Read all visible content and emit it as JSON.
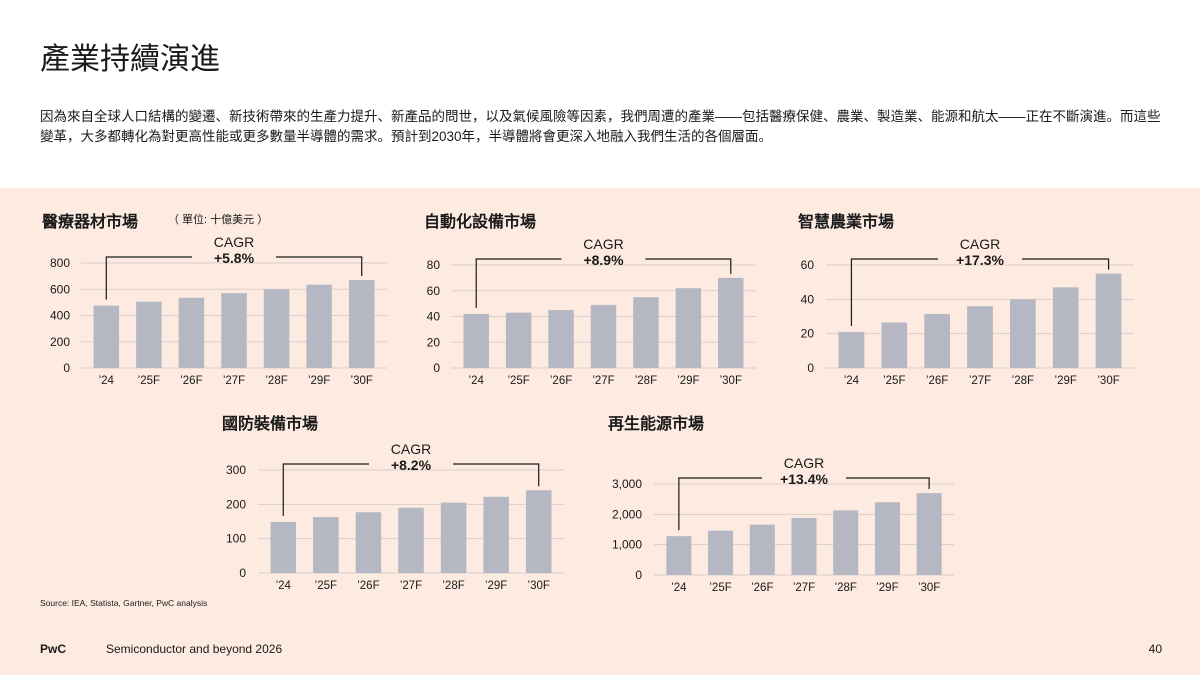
{
  "page": {
    "title": "產業持續演進",
    "intro": "因為來自全球人口結構的變遷、新技術帶來的生產力提升、新產品的問世，以及氣候風險等因素，我們周遭的產業——包括醫療保健、農業、製造業、能源和航太——正在不斷演進。而這些變革，大多都轉化為對更高性能或更多數量半導體的需求。預計到2030年，半導體將會更深入地融入我們生活的各個層面。",
    "unit_note": "（ 單位: 十億美元 ）",
    "source": "Source: IEA, Statista, Gartner, PwC analysis",
    "footer_brand": "PwC",
    "footer_text": "Semiconductor and beyond 2026",
    "page_number": "40"
  },
  "colors": {
    "bar": "#b5b8c2",
    "panel": "#fdebe1",
    "grid": "#d9cfc9"
  },
  "chart_data": [
    {
      "id": "medical",
      "type": "bar",
      "title": "醫療器材市場",
      "categories": [
        "’24",
        "’25F",
        "’26F",
        "’27F",
        "’28F",
        "’29F",
        "’30F"
      ],
      "values": [
        475,
        505,
        535,
        570,
        600,
        635,
        670
      ],
      "ylim": [
        0,
        800
      ],
      "yticks": [
        "0",
        "200",
        "400",
        "600",
        "800"
      ],
      "ytick_values": [
        0,
        200,
        400,
        600,
        800
      ],
      "cagr_label": "CAGR",
      "cagr_value": "+5.8%"
    },
    {
      "id": "automation",
      "type": "bar",
      "title": "自動化設備市場",
      "categories": [
        "’24",
        "’25F",
        "’26F",
        "’27F",
        "’28F",
        "’29F",
        "’30F"
      ],
      "values": [
        42,
        43,
        45,
        49,
        55,
        62,
        70
      ],
      "ylim": [
        0,
        80
      ],
      "yticks": [
        "0",
        "20",
        "40",
        "60",
        "80"
      ],
      "ytick_values": [
        0,
        20,
        40,
        60,
        80
      ],
      "cagr_label": "CAGR",
      "cagr_value": "+8.9%"
    },
    {
      "id": "agri",
      "type": "bar",
      "title": "智慧農業市場",
      "categories": [
        "’24",
        "’25F",
        "’26F",
        "’27F",
        "’28F",
        "’29F",
        "’30F"
      ],
      "values": [
        21,
        26.5,
        31.5,
        36,
        40,
        47,
        55
      ],
      "ylim": [
        0,
        60
      ],
      "yticks": [
        "0",
        "20",
        "40",
        "60"
      ],
      "ytick_values": [
        0,
        20,
        40,
        60
      ],
      "cagr_label": "CAGR",
      "cagr_value": "+17.3%"
    },
    {
      "id": "defense",
      "type": "bar",
      "title": "國防裝備市場",
      "categories": [
        "’24",
        "’25F",
        "’26F",
        "’27F",
        "’28F",
        "’29F",
        "’30F"
      ],
      "values": [
        149,
        163,
        177,
        190,
        205,
        222,
        241
      ],
      "ylim": [
        0,
        300
      ],
      "yticks": [
        "0",
        "100",
        "200",
        "300"
      ],
      "ytick_values": [
        0,
        100,
        200,
        300
      ],
      "cagr_label": "CAGR",
      "cagr_value": "+8.2%"
    },
    {
      "id": "renewable",
      "type": "bar",
      "title": "再生能源市場",
      "categories": [
        "’24",
        "’25F",
        "’26F",
        "’27F",
        "’28F",
        "’29F",
        "’30F"
      ],
      "values": [
        1280,
        1460,
        1660,
        1880,
        2130,
        2400,
        2700
      ],
      "ylim": [
        0,
        3000
      ],
      "yticks": [
        "0",
        "1,000",
        "2,000",
        "3,000"
      ],
      "ytick_values": [
        0,
        1000,
        2000,
        3000
      ],
      "cagr_label": "CAGR",
      "cagr_value": "+13.4%"
    }
  ]
}
